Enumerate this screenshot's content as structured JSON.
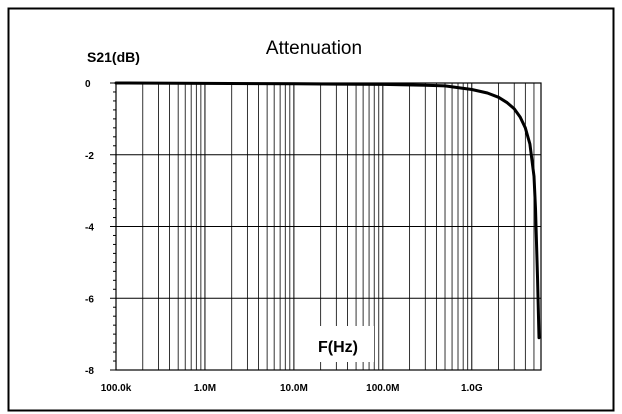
{
  "chart_data": {
    "type": "line",
    "title": "Attenuation",
    "ylabel": "S21(dB)",
    "xlabel": "F(Hz)",
    "x_scale": "log",
    "xlim": [
      100000,
      6000000000
    ],
    "ylim": [
      -8,
      0
    ],
    "x_ticks": [
      100000,
      1000000,
      10000000,
      100000000,
      1000000000
    ],
    "x_tick_labels": [
      "100.0k",
      "1.0M",
      "10.0M",
      "100.0M",
      "1.0G"
    ],
    "y_ticks": [
      0,
      -2,
      -4,
      -6,
      -8
    ],
    "y_tick_labels": [
      "0",
      "-2",
      "-4",
      "-6",
      "-8"
    ],
    "grid": true,
    "series": [
      {
        "color": "#000000",
        "x": [
          100000,
          1000000,
          10000000,
          30000000,
          100000000,
          300000000,
          500000000,
          1000000000,
          1500000000,
          2000000000,
          2500000000,
          3000000000,
          3500000000,
          4000000000,
          4500000000,
          5000000000,
          5200000000,
          5500000000,
          5700000000
        ],
        "y": [
          0,
          -0.01,
          -0.02,
          -0.03,
          -0.04,
          -0.06,
          -0.08,
          -0.18,
          -0.28,
          -0.4,
          -0.55,
          -0.72,
          -0.95,
          -1.25,
          -1.7,
          -2.6,
          -3.5,
          -5.5,
          -7.1
        ]
      }
    ]
  }
}
